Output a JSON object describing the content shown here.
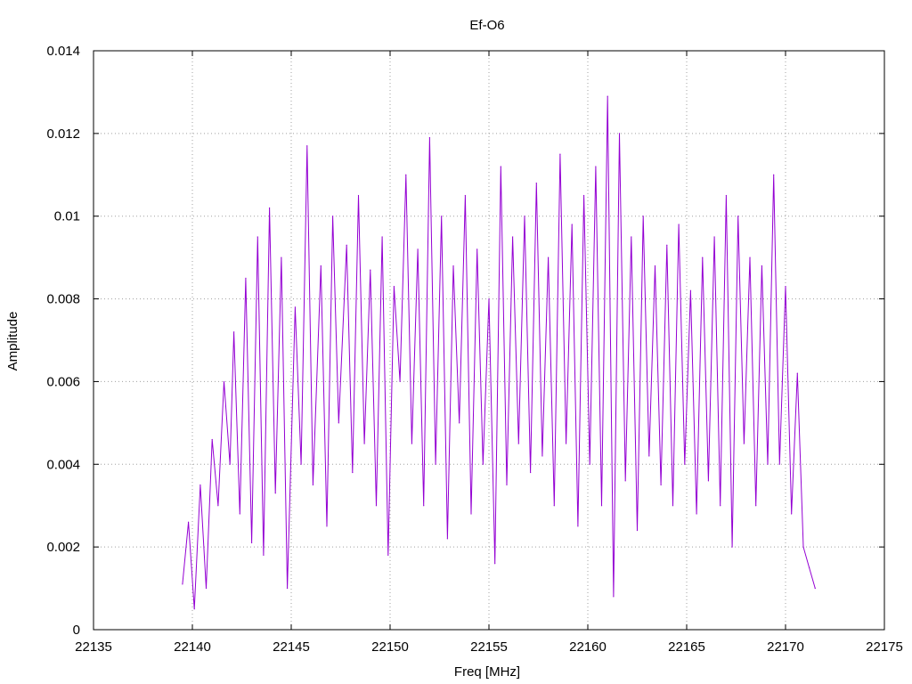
{
  "chart_data": {
    "type": "line",
    "title": "Ef-O6",
    "xlabel": "Freq [MHz]",
    "ylabel": "Amplitude",
    "xlim": [
      22135,
      22175
    ],
    "ylim": [
      0,
      0.014
    ],
    "x_ticks": [
      "22135",
      "22140",
      "22145",
      "22150",
      "22155",
      "22160",
      "22165",
      "22170",
      "22175"
    ],
    "y_ticks": [
      "0",
      "0.002",
      "0.004",
      "0.006",
      "0.008",
      "0.01",
      "0.012",
      "0.014"
    ],
    "grid": true,
    "series": [
      {
        "color": "#9400d3",
        "x": [
          22139.5,
          22139.8,
          22140.1,
          22140.4,
          22140.7,
          22141.0,
          22141.3,
          22141.6,
          22141.9,
          22142.1,
          22142.4,
          22142.7,
          22143.0,
          22143.3,
          22143.6,
          22143.9,
          22144.2,
          22144.5,
          22144.8,
          22145.2,
          22145.5,
          22145.8,
          22146.1,
          22146.5,
          22146.8,
          22147.1,
          22147.4,
          22147.8,
          22148.1,
          22148.4,
          22148.7,
          22149.0,
          22149.3,
          22149.6,
          22149.9,
          22150.2,
          22150.5,
          22150.8,
          22151.1,
          22151.4,
          22151.7,
          22152.0,
          22152.3,
          22152.6,
          22152.9,
          22153.2,
          22153.5,
          22153.8,
          22154.1,
          22154.4,
          22154.7,
          22155.0,
          22155.3,
          22155.6,
          22155.9,
          22156.2,
          22156.5,
          22156.8,
          22157.1,
          22157.4,
          22157.7,
          22158.0,
          22158.3,
          22158.6,
          22158.9,
          22159.2,
          22159.5,
          22159.8,
          22160.1,
          22160.4,
          22160.7,
          22161.0,
          22161.3,
          22161.6,
          22161.9,
          22162.2,
          22162.5,
          22162.8,
          22163.1,
          22163.4,
          22163.7,
          22164.0,
          22164.3,
          22164.6,
          22164.9,
          22165.2,
          22165.5,
          22165.8,
          22166.1,
          22166.4,
          22166.7,
          22167.0,
          22167.3,
          22167.6,
          22167.9,
          22168.2,
          22168.5,
          22168.8,
          22169.1,
          22169.4,
          22169.7,
          22170.0,
          22170.3,
          22170.6,
          22170.9,
          22171.2,
          22171.5
        ],
        "y": [
          0.0011,
          0.0026,
          0.0005,
          0.0035,
          0.001,
          0.0046,
          0.003,
          0.006,
          0.004,
          0.0072,
          0.0028,
          0.0085,
          0.0021,
          0.0095,
          0.0018,
          0.0102,
          0.0033,
          0.009,
          0.001,
          0.0078,
          0.004,
          0.0117,
          0.0035,
          0.0088,
          0.0025,
          0.01,
          0.005,
          0.0093,
          0.0038,
          0.0105,
          0.0045,
          0.0087,
          0.003,
          0.0095,
          0.0018,
          0.0083,
          0.006,
          0.011,
          0.0045,
          0.0092,
          0.003,
          0.0119,
          0.004,
          0.01,
          0.0022,
          0.0088,
          0.005,
          0.0105,
          0.0028,
          0.0092,
          0.004,
          0.008,
          0.0016,
          0.0112,
          0.0035,
          0.0095,
          0.0045,
          0.01,
          0.0038,
          0.0108,
          0.0042,
          0.009,
          0.003,
          0.0115,
          0.0045,
          0.0098,
          0.0025,
          0.0105,
          0.004,
          0.0112,
          0.003,
          0.0129,
          0.0008,
          0.012,
          0.0036,
          0.0095,
          0.0024,
          0.01,
          0.0042,
          0.0088,
          0.0035,
          0.0093,
          0.003,
          0.0098,
          0.004,
          0.0082,
          0.0028,
          0.009,
          0.0036,
          0.0095,
          0.003,
          0.0105,
          0.002,
          0.01,
          0.0045,
          0.009,
          0.003,
          0.0088,
          0.004,
          0.011,
          0.004,
          0.0083,
          0.0028,
          0.0062,
          0.002,
          0.0015,
          0.001
        ]
      }
    ]
  }
}
